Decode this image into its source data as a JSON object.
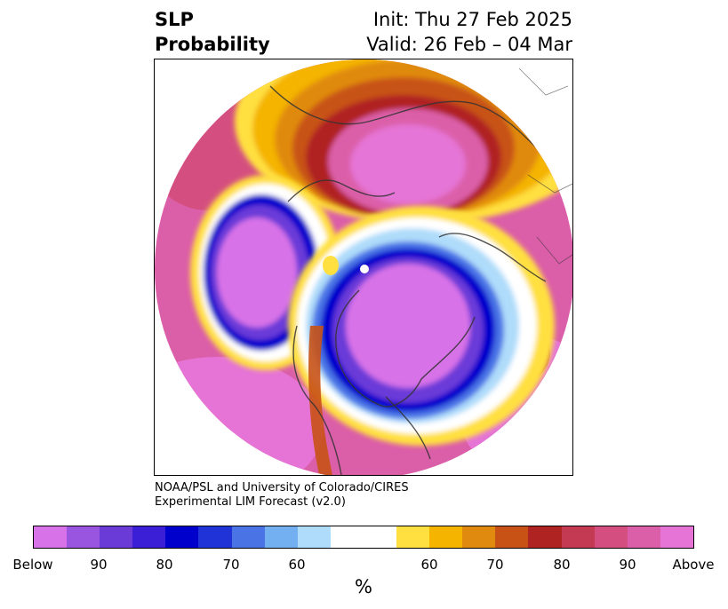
{
  "title": {
    "left_line1": "SLP",
    "left_line2": "Probability",
    "right_line1": "Init: Thu 27 Feb 2025",
    "right_line2": "Valid: 26 Feb – 04 Mar"
  },
  "credit": {
    "line1": "NOAA/PSL and University of Colorado/CIRES",
    "line2": "Experimental LIM Forecast (v2.0)"
  },
  "colorbar": {
    "colors": [
      "#d872e8",
      "#9a55e0",
      "#6b3bd8",
      "#3a1fd6",
      "#0000cc",
      "#2033d6",
      "#4a73e6",
      "#72b0f2",
      "#afdcfa",
      "#ffffff",
      "#ffffff",
      "#ffe040",
      "#f4b400",
      "#e08a10",
      "#c85216",
      "#b02323",
      "#c43a52",
      "#d44f80",
      "#db5ea8",
      "#e574d6"
    ],
    "tick_labels": [
      "Below",
      "90",
      "80",
      "70",
      "60",
      "60",
      "70",
      "80",
      "90",
      "Above"
    ],
    "unit": "%"
  }
}
